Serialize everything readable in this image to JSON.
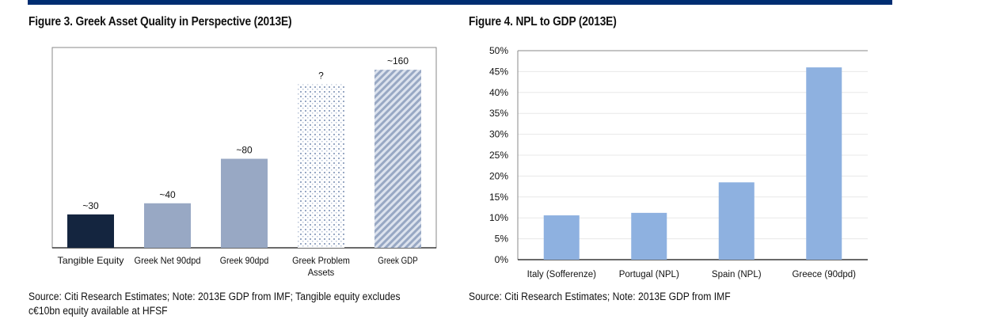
{
  "header_bar_color": "#002d72",
  "chart_data": [
    {
      "type": "bar",
      "title": "Figure 3. Greek Asset Quality in Perspective (2013E)",
      "xlabel": "",
      "ylabel": "",
      "ylim": [
        0,
        180
      ],
      "grid": false,
      "axis_ticks_shown": false,
      "categories": [
        "Tangible Equity",
        "Greek Net 90dpd",
        "Greek 90dpd",
        "Greek Problem Assets",
        "Greek GDP"
      ],
      "values": [
        30,
        40,
        80,
        147,
        160
      ],
      "data_labels": [
        "~30",
        "~40",
        "~80",
        "?",
        "~160"
      ],
      "bar_styles": [
        "solid",
        "solid",
        "solid",
        "dotted",
        "diagonal-hatch"
      ],
      "bar_colors": [
        "#14253f",
        "#98a8c4",
        "#98a8c4",
        "#98a8c4",
        "#98a8c4"
      ],
      "source": "Source: Citi Research Estimates; Note: 2013E GDP from IMF; Tangible equity excludes c€10bn equity available at HFSF"
    },
    {
      "type": "bar",
      "title": "Figure 4. NPL to GDP (2013E)",
      "xlabel": "",
      "ylabel": "",
      "ylim": [
        0,
        0.5
      ],
      "grid": true,
      "y_ticks": [
        0,
        0.05,
        0.1,
        0.15,
        0.2,
        0.25,
        0.3,
        0.35,
        0.4,
        0.45,
        0.5
      ],
      "y_tick_labels": [
        "0%",
        "5%",
        "10%",
        "15%",
        "20%",
        "25%",
        "30%",
        "35%",
        "40%",
        "45%",
        "50%"
      ],
      "categories": [
        "Italy (Sofferenze)",
        "Portugal (NPL)",
        "Spain (NPL)",
        "Greece (90dpd)"
      ],
      "values": [
        0.106,
        0.112,
        0.185,
        0.46
      ],
      "bar_color": "#8eb1e0",
      "source": "Source: Citi Research Estimates; Note: 2013E GDP from IMF"
    }
  ]
}
